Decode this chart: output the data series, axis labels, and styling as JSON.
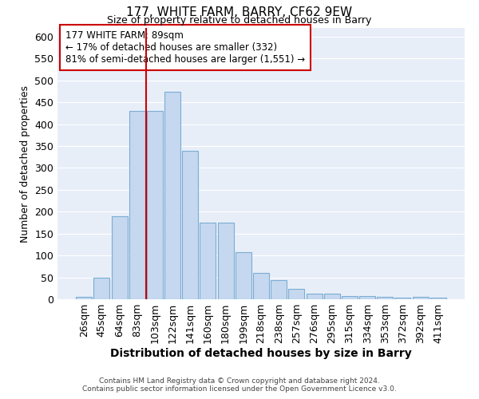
{
  "title": "177, WHITE FARM, BARRY, CF62 9EW",
  "subtitle": "Size of property relative to detached houses in Barry",
  "xlabel": "Distribution of detached houses by size in Barry",
  "ylabel": "Number of detached properties",
  "bar_values": [
    5,
    50,
    190,
    430,
    430,
    475,
    340,
    175,
    175,
    107,
    61,
    44,
    24,
    12,
    12,
    8,
    7,
    5,
    4,
    5,
    4
  ],
  "bar_labels": [
    "26sqm",
    "45sqm",
    "64sqm",
    "83sqm",
    "103sqm",
    "122sqm",
    "141sqm",
    "160sqm",
    "180sqm",
    "199sqm",
    "218sqm",
    "238sqm",
    "257sqm",
    "276sqm",
    "295sqm",
    "315sqm",
    "334sqm",
    "353sqm",
    "372sqm",
    "392sqm",
    "411sqm"
  ],
  "bar_color": "#c5d8ef",
  "bar_edge_color": "#7aadd4",
  "annotation_box_text": "177 WHITE FARM: 89sqm\n← 17% of detached houses are smaller (332)\n81% of semi-detached houses are larger (1,551) →",
  "annotation_box_color": "#ffffff",
  "annotation_box_edge_color": "#cc0000",
  "vline_x": 3.5,
  "vline_color": "#cc0000",
  "ylim": [
    0,
    620
  ],
  "yticks": [
    0,
    50,
    100,
    150,
    200,
    250,
    300,
    350,
    400,
    450,
    500,
    550,
    600
  ],
  "background_color": "#e8eef8",
  "grid_color": "#ffffff",
  "footer_line1": "Contains HM Land Registry data © Crown copyright and database right 2024.",
  "footer_line2": "Contains public sector information licensed under the Open Government Licence v3.0."
}
